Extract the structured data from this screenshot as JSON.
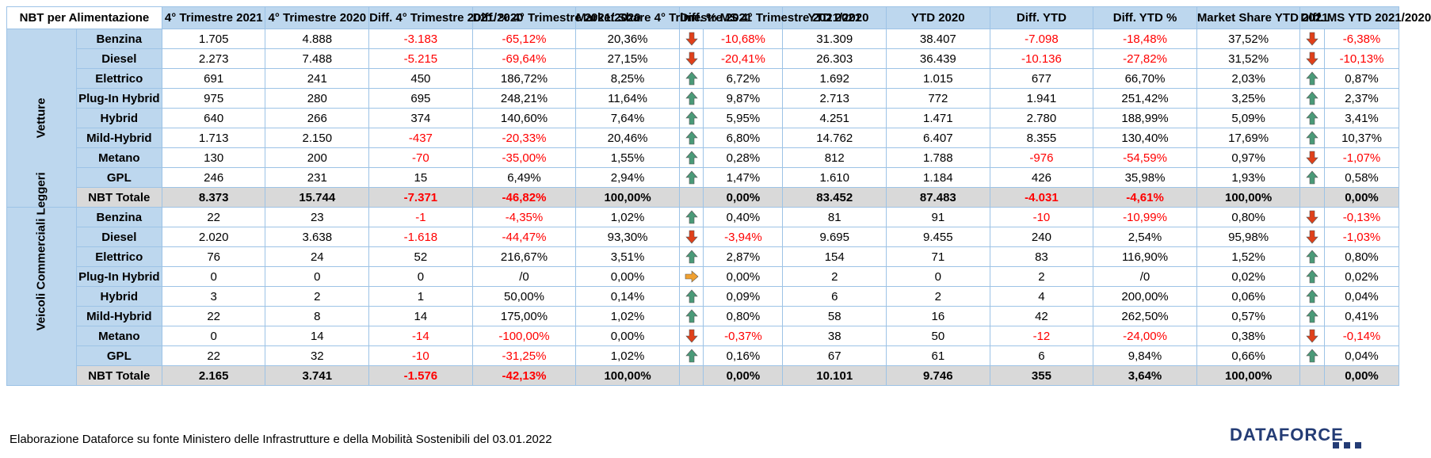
{
  "title": "NBT per Alimentazione",
  "headers": [
    "4° Trimestre 2021",
    "4° Trimestre 2020",
    "Diff. 4° Trimestre 2021/2020",
    "Diff. % 4° Trimestre 2021/2020",
    "Market Share 4° Trimestre 2021",
    "Diff. % MS 4° Trimestre 2021/2020",
    "YTD 2021",
    "YTD 2020",
    "Diff. YTD",
    "Diff. YTD %",
    "Market Share YTD 2021",
    "Diff. MS YTD 2021/2020"
  ],
  "groups": [
    {
      "label": "Vetture",
      "rows": [
        {
          "label": "Benzina",
          "q21": "1.705",
          "q20": "4.888",
          "diff": "-3.183",
          "diffp": "-65,12%",
          "ms": "20,36%",
          "msd": "-10,68%",
          "msd_dir": "down",
          "y21": "31.309",
          "y20": "38.407",
          "ydiff": "-7.098",
          "ydiffp": "-18,48%",
          "yms": "37,52%",
          "ymsd": "-6,38%",
          "ymsd_dir": "down"
        },
        {
          "label": "Diesel",
          "q21": "2.273",
          "q20": "7.488",
          "diff": "-5.215",
          "diffp": "-69,64%",
          "ms": "27,15%",
          "msd": "-20,41%",
          "msd_dir": "down",
          "y21": "26.303",
          "y20": "36.439",
          "ydiff": "-10.136",
          "ydiffp": "-27,82%",
          "yms": "31,52%",
          "ymsd": "-10,13%",
          "ymsd_dir": "down"
        },
        {
          "label": "Elettrico",
          "q21": "691",
          "q20": "241",
          "diff": "450",
          "diffp": "186,72%",
          "ms": "8,25%",
          "msd": "6,72%",
          "msd_dir": "up",
          "y21": "1.692",
          "y20": "1.015",
          "ydiff": "677",
          "ydiffp": "66,70%",
          "yms": "2,03%",
          "ymsd": "0,87%",
          "ymsd_dir": "up"
        },
        {
          "label": "Plug-In Hybrid",
          "q21": "975",
          "q20": "280",
          "diff": "695",
          "diffp": "248,21%",
          "ms": "11,64%",
          "msd": "9,87%",
          "msd_dir": "up",
          "y21": "2.713",
          "y20": "772",
          "ydiff": "1.941",
          "ydiffp": "251,42%",
          "yms": "3,25%",
          "ymsd": "2,37%",
          "ymsd_dir": "up"
        },
        {
          "label": "Hybrid",
          "q21": "640",
          "q20": "266",
          "diff": "374",
          "diffp": "140,60%",
          "ms": "7,64%",
          "msd": "5,95%",
          "msd_dir": "up",
          "y21": "4.251",
          "y20": "1.471",
          "ydiff": "2.780",
          "ydiffp": "188,99%",
          "yms": "5,09%",
          "ymsd": "3,41%",
          "ymsd_dir": "up"
        },
        {
          "label": "Mild-Hybrid",
          "q21": "1.713",
          "q20": "2.150",
          "diff": "-437",
          "diffp": "-20,33%",
          "ms": "20,46%",
          "msd": "6,80%",
          "msd_dir": "up",
          "y21": "14.762",
          "y20": "6.407",
          "ydiff": "8.355",
          "ydiffp": "130,40%",
          "yms": "17,69%",
          "ymsd": "10,37%",
          "ymsd_dir": "up"
        },
        {
          "label": "Metano",
          "q21": "130",
          "q20": "200",
          "diff": "-70",
          "diffp": "-35,00%",
          "ms": "1,55%",
          "msd": "0,28%",
          "msd_dir": "up",
          "y21": "812",
          "y20": "1.788",
          "ydiff": "-976",
          "ydiffp": "-54,59%",
          "yms": "0,97%",
          "ymsd": "-1,07%",
          "ymsd_dir": "down"
        },
        {
          "label": "GPL",
          "q21": "246",
          "q20": "231",
          "diff": "15",
          "diffp": "6,49%",
          "ms": "2,94%",
          "msd": "1,47%",
          "msd_dir": "up",
          "y21": "1.610",
          "y20": "1.184",
          "ydiff": "426",
          "ydiffp": "35,98%",
          "yms": "1,93%",
          "ymsd": "0,58%",
          "ymsd_dir": "up"
        },
        {
          "label": "NBT Totale",
          "total": true,
          "q21": "8.373",
          "q20": "15.744",
          "diff": "-7.371",
          "diffp": "-46,82%",
          "ms": "100,00%",
          "msd": "0,00%",
          "msd_dir": "none",
          "y21": "83.452",
          "y20": "87.483",
          "ydiff": "-4.031",
          "ydiffp": "-4,61%",
          "yms": "100,00%",
          "ymsd": "0,00%",
          "ymsd_dir": "none"
        }
      ]
    },
    {
      "label": "Veicoli Commerciali Leggeri",
      "rows": [
        {
          "label": "Benzina",
          "q21": "22",
          "q20": "23",
          "diff": "-1",
          "diffp": "-4,35%",
          "ms": "1,02%",
          "msd": "0,40%",
          "msd_dir": "up",
          "y21": "81",
          "y20": "91",
          "ydiff": "-10",
          "ydiffp": "-10,99%",
          "yms": "0,80%",
          "ymsd": "-0,13%",
          "ymsd_dir": "down"
        },
        {
          "label": "Diesel",
          "q21": "2.020",
          "q20": "3.638",
          "diff": "-1.618",
          "diffp": "-44,47%",
          "ms": "93,30%",
          "msd": "-3,94%",
          "msd_dir": "down",
          "y21": "9.695",
          "y20": "9.455",
          "ydiff": "240",
          "ydiffp": "2,54%",
          "yms": "95,98%",
          "ymsd": "-1,03%",
          "ymsd_dir": "down"
        },
        {
          "label": "Elettrico",
          "q21": "76",
          "q20": "24",
          "diff": "52",
          "diffp": "216,67%",
          "ms": "3,51%",
          "msd": "2,87%",
          "msd_dir": "up",
          "y21": "154",
          "y20": "71",
          "ydiff": "83",
          "ydiffp": "116,90%",
          "yms": "1,52%",
          "ymsd": "0,80%",
          "ymsd_dir": "up"
        },
        {
          "label": "Plug-In Hybrid",
          "q21": "0",
          "q20": "0",
          "diff": "0",
          "diffp": "/0",
          "ms": "0,00%",
          "msd": "0,00%",
          "msd_dir": "flat",
          "y21": "2",
          "y20": "0",
          "ydiff": "2",
          "ydiffp": "/0",
          "yms": "0,02%",
          "ymsd": "0,02%",
          "ymsd_dir": "up"
        },
        {
          "label": "Hybrid",
          "q21": "3",
          "q20": "2",
          "diff": "1",
          "diffp": "50,00%",
          "ms": "0,14%",
          "msd": "0,09%",
          "msd_dir": "up",
          "y21": "6",
          "y20": "2",
          "ydiff": "4",
          "ydiffp": "200,00%",
          "yms": "0,06%",
          "ymsd": "0,04%",
          "ymsd_dir": "up"
        },
        {
          "label": "Mild-Hybrid",
          "q21": "22",
          "q20": "8",
          "diff": "14",
          "diffp": "175,00%",
          "ms": "1,02%",
          "msd": "0,80%",
          "msd_dir": "up",
          "y21": "58",
          "y20": "16",
          "ydiff": "42",
          "ydiffp": "262,50%",
          "yms": "0,57%",
          "ymsd": "0,41%",
          "ymsd_dir": "up"
        },
        {
          "label": "Metano",
          "q21": "0",
          "q20": "14",
          "diff": "-14",
          "diffp": "-100,00%",
          "ms": "0,00%",
          "msd": "-0,37%",
          "msd_dir": "down",
          "y21": "38",
          "y20": "50",
          "ydiff": "-12",
          "ydiffp": "-24,00%",
          "yms": "0,38%",
          "ymsd": "-0,14%",
          "ymsd_dir": "down"
        },
        {
          "label": "GPL",
          "q21": "22",
          "q20": "32",
          "diff": "-10",
          "diffp": "-31,25%",
          "ms": "1,02%",
          "msd": "0,16%",
          "msd_dir": "up",
          "y21": "67",
          "y20": "61",
          "ydiff": "6",
          "ydiffp": "9,84%",
          "yms": "0,66%",
          "ymsd": "0,04%",
          "ymsd_dir": "up"
        },
        {
          "label": "NBT Totale",
          "total": true,
          "q21": "2.165",
          "q20": "3.741",
          "diff": "-1.576",
          "diffp": "-42,13%",
          "ms": "100,00%",
          "msd": "0,00%",
          "msd_dir": "none",
          "y21": "10.101",
          "y20": "9.746",
          "ydiff": "355",
          "ydiffp": "3,64%",
          "yms": "100,00%",
          "ymsd": "0,00%",
          "ymsd_dir": "none"
        }
      ]
    }
  ],
  "footer": "Elaborazione Dataforce su fonte Ministero delle Infrastrutture e della Mobilità Sostenibili del 03.01.2022",
  "logo": "DATAFORCE",
  "colors": {
    "header_bg": "#bdd7ee",
    "total_bg": "#d9d9d9",
    "negative": "#ff0000",
    "arrow_down": "#e0401a",
    "arrow_up": "#4a9a78",
    "arrow_flat": "#f0a030",
    "logo": "#243c75"
  }
}
